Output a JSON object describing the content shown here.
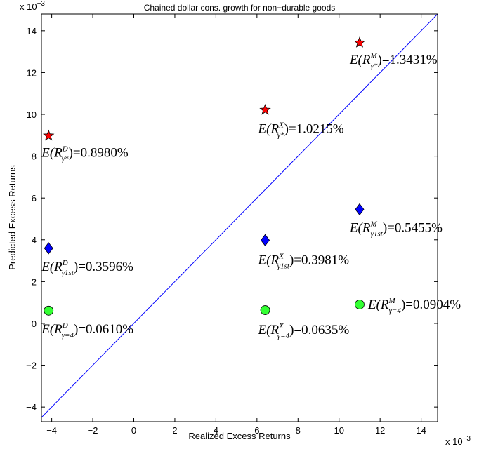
{
  "chart_data": {
    "type": "scatter",
    "title": "Chained dollar cons. growth for non−durable goods",
    "xlabel": "Realized Excess Returns",
    "ylabel": "Predicted Excess Returns",
    "x_multiplier": "x 10",
    "x_multiplier_exp": "−3",
    "y_multiplier": "x 10",
    "y_multiplier_exp": "−3",
    "xlim": [
      -0.0045,
      0.0148
    ],
    "ylim": [
      -0.0047,
      0.0148
    ],
    "xticks": [
      -0.004,
      -0.002,
      0,
      0.002,
      0.004,
      0.006,
      0.008,
      0.01,
      0.012,
      0.014
    ],
    "xtick_labels": [
      "−4",
      "−2",
      "0",
      "2",
      "4",
      "6",
      "8",
      "10",
      "12",
      "14"
    ],
    "yticks": [
      -0.004,
      -0.002,
      0,
      0.002,
      0.004,
      0.006,
      0.008,
      0.01,
      0.012,
      0.014
    ],
    "ytick_labels": [
      "−4",
      "−2",
      "0",
      "2",
      "4",
      "6",
      "8",
      "10",
      "12",
      "14"
    ],
    "reference_line": {
      "type": "45-degree",
      "color": "#0000ff"
    },
    "series": [
      {
        "marker": "star",
        "color": "#ff0000",
        "points": [
          {
            "x": -0.00415,
            "y": 0.00898,
            "label": {
              "base": "E(R",
              "sup": "D",
              "sub": "γ*",
              "value": "=0.8980%"
            }
          },
          {
            "x": 0.0064,
            "y": 0.010215,
            "label": {
              "base": "E(R",
              "sup": "X",
              "sub": "γ*",
              "value": "=1.0215%"
            }
          },
          {
            "x": 0.011,
            "y": 0.013431,
            "label": {
              "base": "E(R",
              "sup": "M",
              "sub": "γ*",
              "value": "=1.3431%"
            }
          }
        ]
      },
      {
        "marker": "diamond",
        "color": "#0000ff",
        "points": [
          {
            "x": -0.00415,
            "y": 0.003596,
            "label": {
              "base": "E(R",
              "sup": "D",
              "sub": "γ1st",
              "value": "=0.3596%"
            }
          },
          {
            "x": 0.0064,
            "y": 0.003981,
            "label": {
              "base": "E(R",
              "sup": "X",
              "sub": "γ1st",
              "value": "=0.3981%"
            }
          },
          {
            "x": 0.011,
            "y": 0.005455,
            "label": {
              "base": "E(R",
              "sup": "M",
              "sub": "γ1st",
              "value": "=0.5455%"
            }
          }
        ]
      },
      {
        "marker": "circle",
        "color": "#33ff33",
        "points": [
          {
            "x": -0.00415,
            "y": 0.00061,
            "label": {
              "base": "E(R",
              "sup": "D",
              "sub": "γ=4",
              "value": "=0.0610%"
            }
          },
          {
            "x": 0.0064,
            "y": 0.000635,
            "label": {
              "base": "E(R",
              "sup": "X",
              "sub": "γ=4",
              "value": "=0.0635%"
            }
          },
          {
            "x": 0.011,
            "y": 0.000904,
            "label": {
              "base": "E(R",
              "sup": "M",
              "sub": "γ=4",
              "value": "=0.0904%"
            }
          }
        ]
      }
    ]
  }
}
